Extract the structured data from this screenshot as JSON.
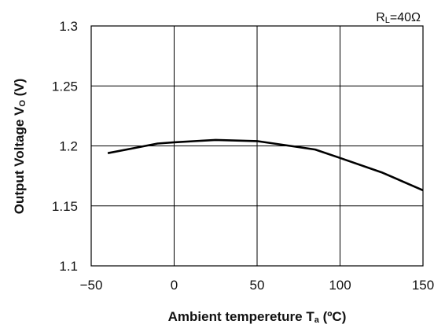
{
  "chart_data": {
    "type": "line",
    "title": "",
    "annotation": {
      "main": "R",
      "sub": "L",
      "rest": "=40Ω"
    },
    "xlabel": {
      "main": "Ambient tempereture T",
      "sub": "a",
      "rest": " (ºC)"
    },
    "ylabel": {
      "main": "Output Voltage V",
      "sub": "O",
      "rest": " (V)"
    },
    "xlim": [
      -50,
      150
    ],
    "ylim": [
      1.1,
      1.3
    ],
    "xticks": [
      -50,
      0,
      50,
      100,
      150
    ],
    "xtick_labels": [
      "−50",
      "0",
      "50",
      "100",
      "150"
    ],
    "yticks": [
      1.1,
      1.15,
      1.2,
      1.25,
      1.3
    ],
    "ytick_labels": [
      "1.1",
      "1.15",
      "1.2",
      "1.25",
      "1.3"
    ],
    "grid": true,
    "series": [
      {
        "x": [
          -40,
          -25,
          -10,
          0,
          25,
          50,
          70,
          85,
          100,
          125,
          150
        ],
        "y": [
          1.194,
          1.198,
          1.202,
          1.203,
          1.205,
          1.204,
          1.2,
          1.197,
          1.19,
          1.178,
          1.163
        ]
      }
    ]
  }
}
